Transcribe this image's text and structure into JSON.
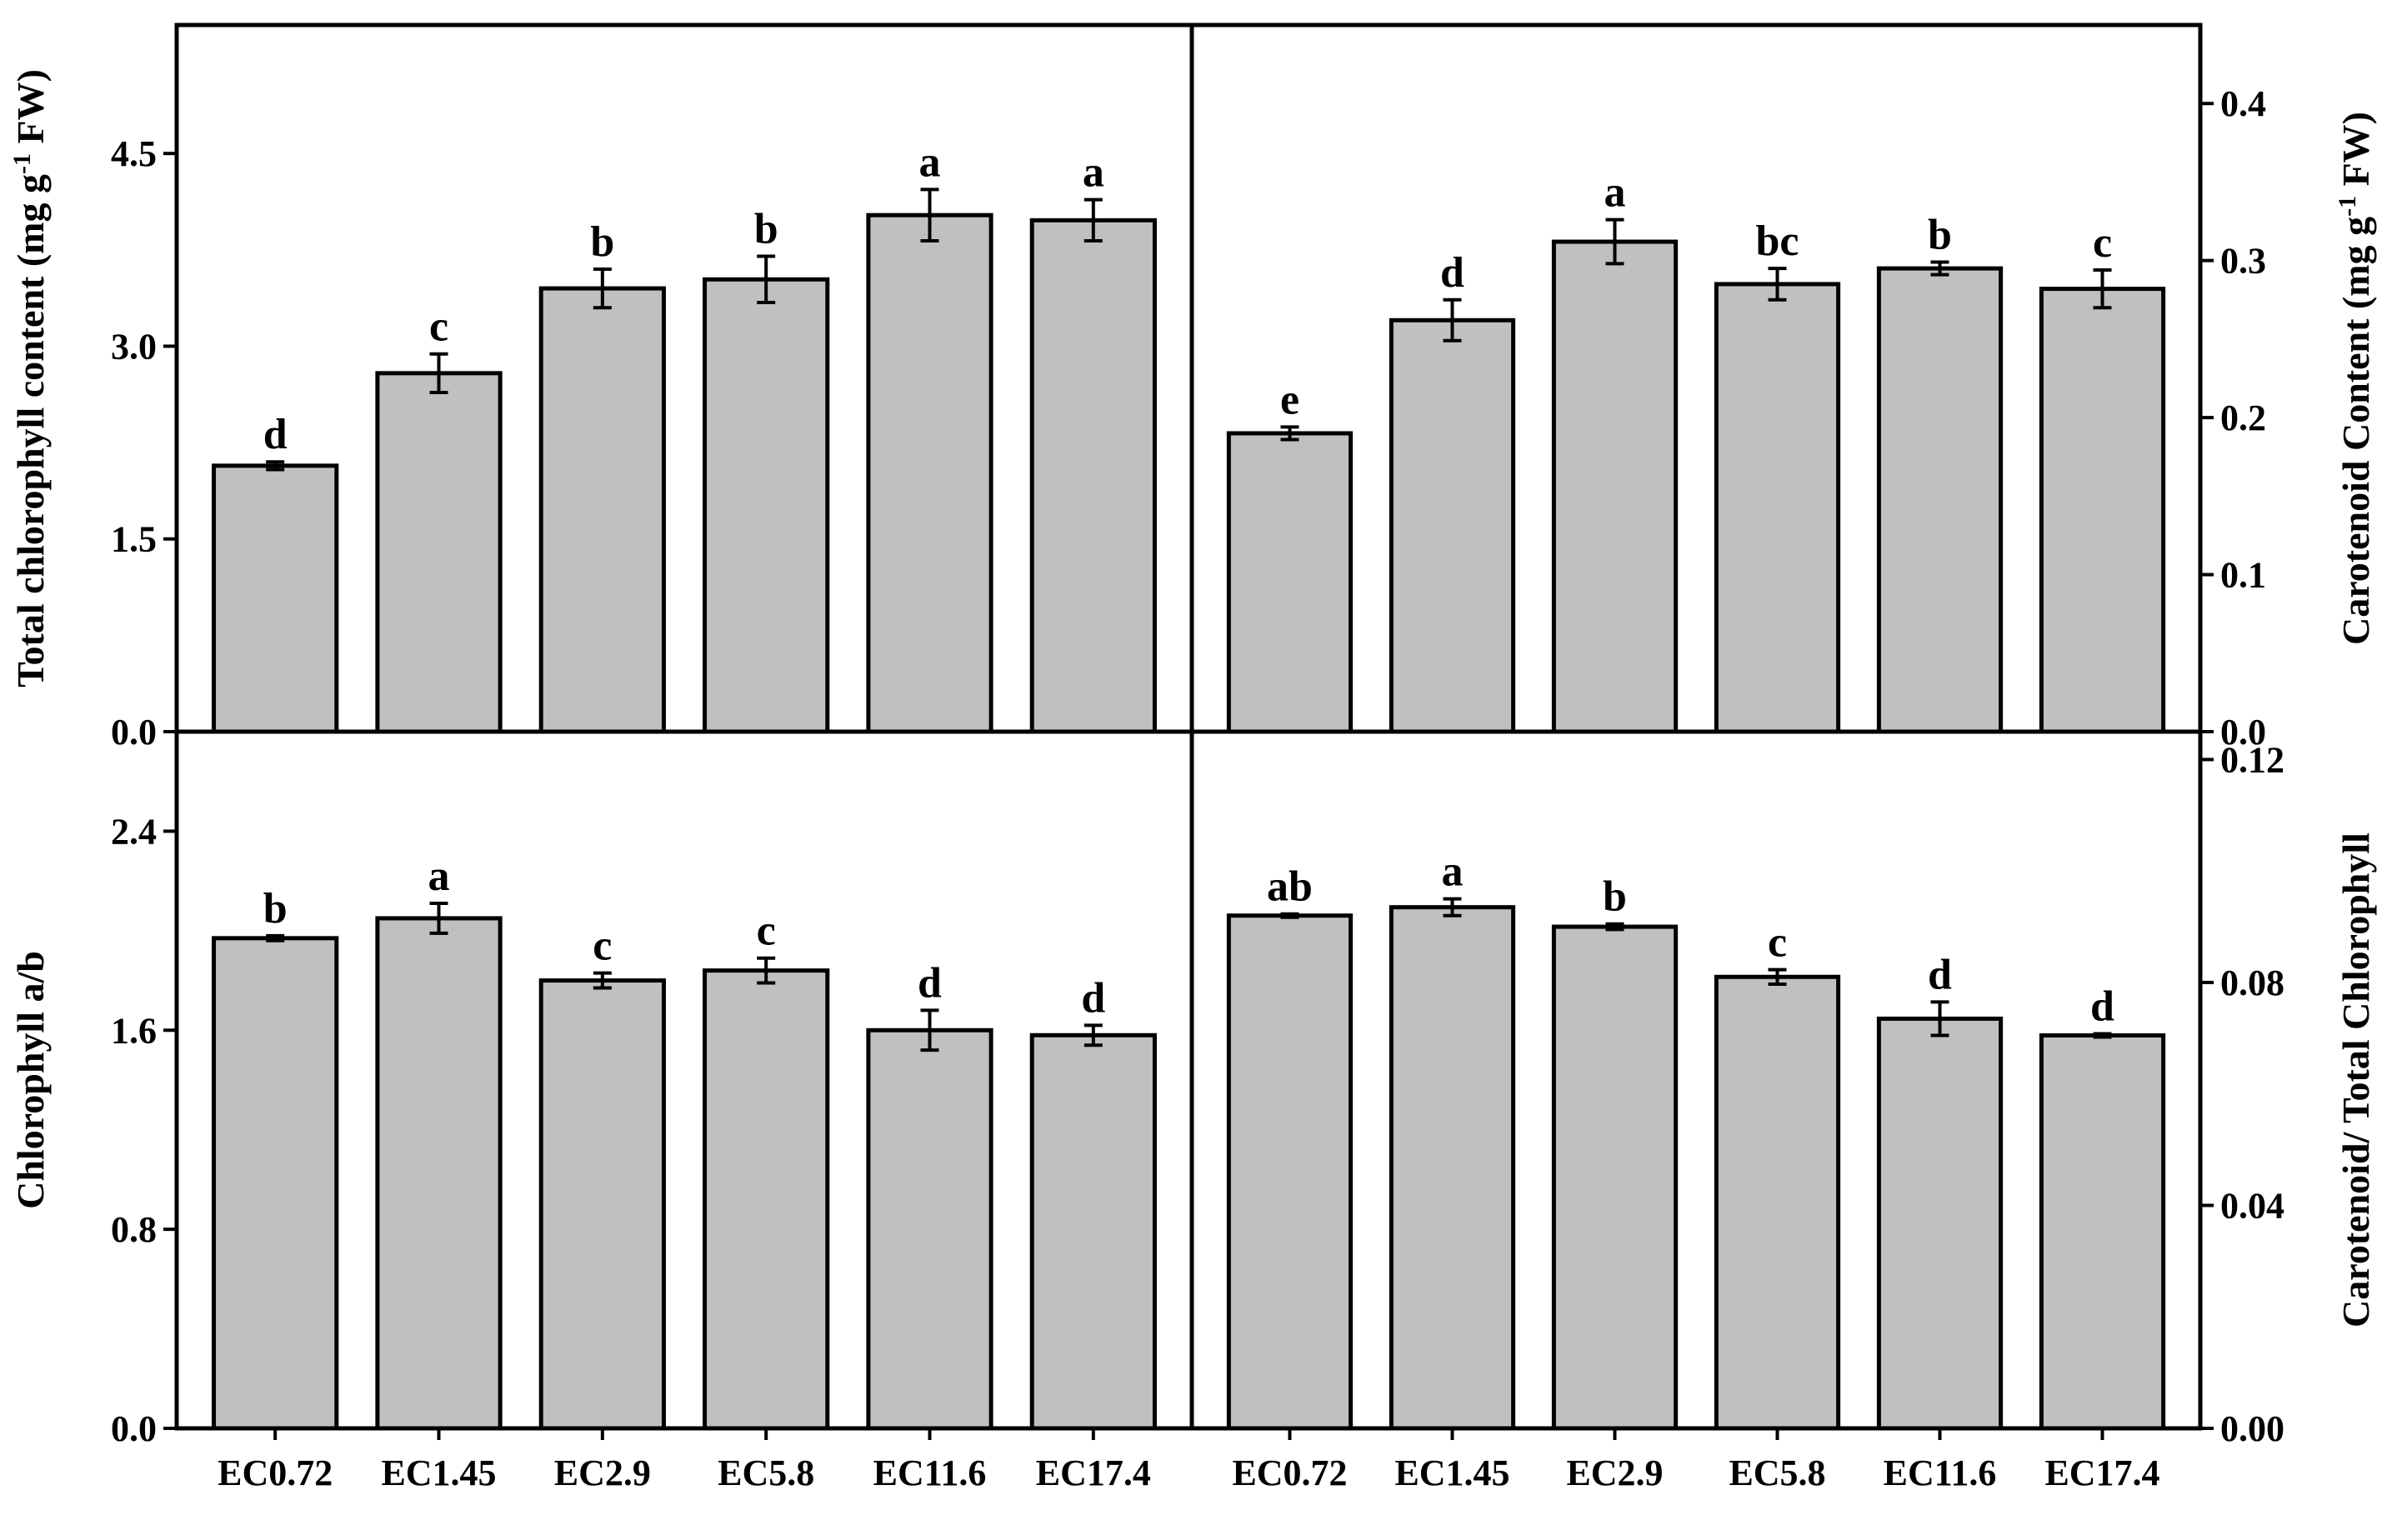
{
  "categories": [
    "EC0.72",
    "EC1.45",
    "EC2.9",
    "EC5.8",
    "EC11.6",
    "EC17.4"
  ],
  "colors": {
    "bar_fill": "#c0c0c0",
    "bar_stroke": "#000000",
    "axis": "#000000"
  },
  "chart_data": [
    {
      "type": "bar",
      "position": "top-left",
      "ylabel_parts": [
        "Total chlorophyll content (mg g",
        "-1",
        " FW)"
      ],
      "ylim": [
        0,
        5.5
      ],
      "yticks": [
        0,
        1.5,
        3,
        4.5
      ],
      "ytick_labels": [
        "0.0",
        "1.5",
        "3.0",
        "4.5"
      ],
      "values": [
        2.07,
        2.79,
        3.45,
        3.52,
        4.02,
        3.98
      ],
      "errors": [
        0.03,
        0.15,
        0.15,
        0.18,
        0.2,
        0.16
      ],
      "significance": [
        "d",
        "c",
        "b",
        "b",
        "a",
        "a"
      ]
    },
    {
      "type": "bar",
      "position": "top-right",
      "ylabel_parts": [
        "Carotenoid Content (mg g",
        "-1",
        " FW)"
      ],
      "ylim": [
        0,
        0.45
      ],
      "yticks": [
        0,
        0.1,
        0.2,
        0.3,
        0.4
      ],
      "ytick_labels": [
        "0.0",
        "0.1",
        "0.2",
        "0.3",
        "0.4"
      ],
      "values": [
        0.19,
        0.262,
        0.312,
        0.285,
        0.295,
        0.282
      ],
      "errors": [
        0.004,
        0.013,
        0.014,
        0.01,
        0.004,
        0.012
      ],
      "significance": [
        "e",
        "d",
        "a",
        "bc",
        "b",
        "c"
      ]
    },
    {
      "type": "bar",
      "position": "bottom-left",
      "ylabel": "Chlorophyll a/b",
      "ylim": [
        0,
        2.8
      ],
      "yticks": [
        0,
        0.8,
        1.6,
        2.4
      ],
      "ytick_labels": [
        "0.0",
        "0.8",
        "1.6",
        "2.4"
      ],
      "values": [
        1.97,
        2.05,
        1.8,
        1.84,
        1.6,
        1.58
      ],
      "errors": [
        0.01,
        0.06,
        0.03,
        0.05,
        0.08,
        0.04
      ],
      "significance": [
        "b",
        "a",
        "c",
        "c",
        "d",
        "d"
      ]
    },
    {
      "type": "bar",
      "position": "bottom-right",
      "ylabel": "Carotenoid/ Total Chlorophyll",
      "ylim": [
        0,
        0.125
      ],
      "yticks": [
        0,
        0.04,
        0.08,
        0.12
      ],
      "ytick_labels": [
        "0.00",
        "0.04",
        "0.08",
        "0.12"
      ],
      "values": [
        0.092,
        0.0935,
        0.09,
        0.081,
        0.0735,
        0.0705
      ],
      "errors": [
        0.0003,
        0.0015,
        0.0005,
        0.0013,
        0.003,
        0.0003
      ],
      "significance": [
        "ab",
        "a",
        "b",
        "c",
        "d",
        "d"
      ]
    }
  ]
}
